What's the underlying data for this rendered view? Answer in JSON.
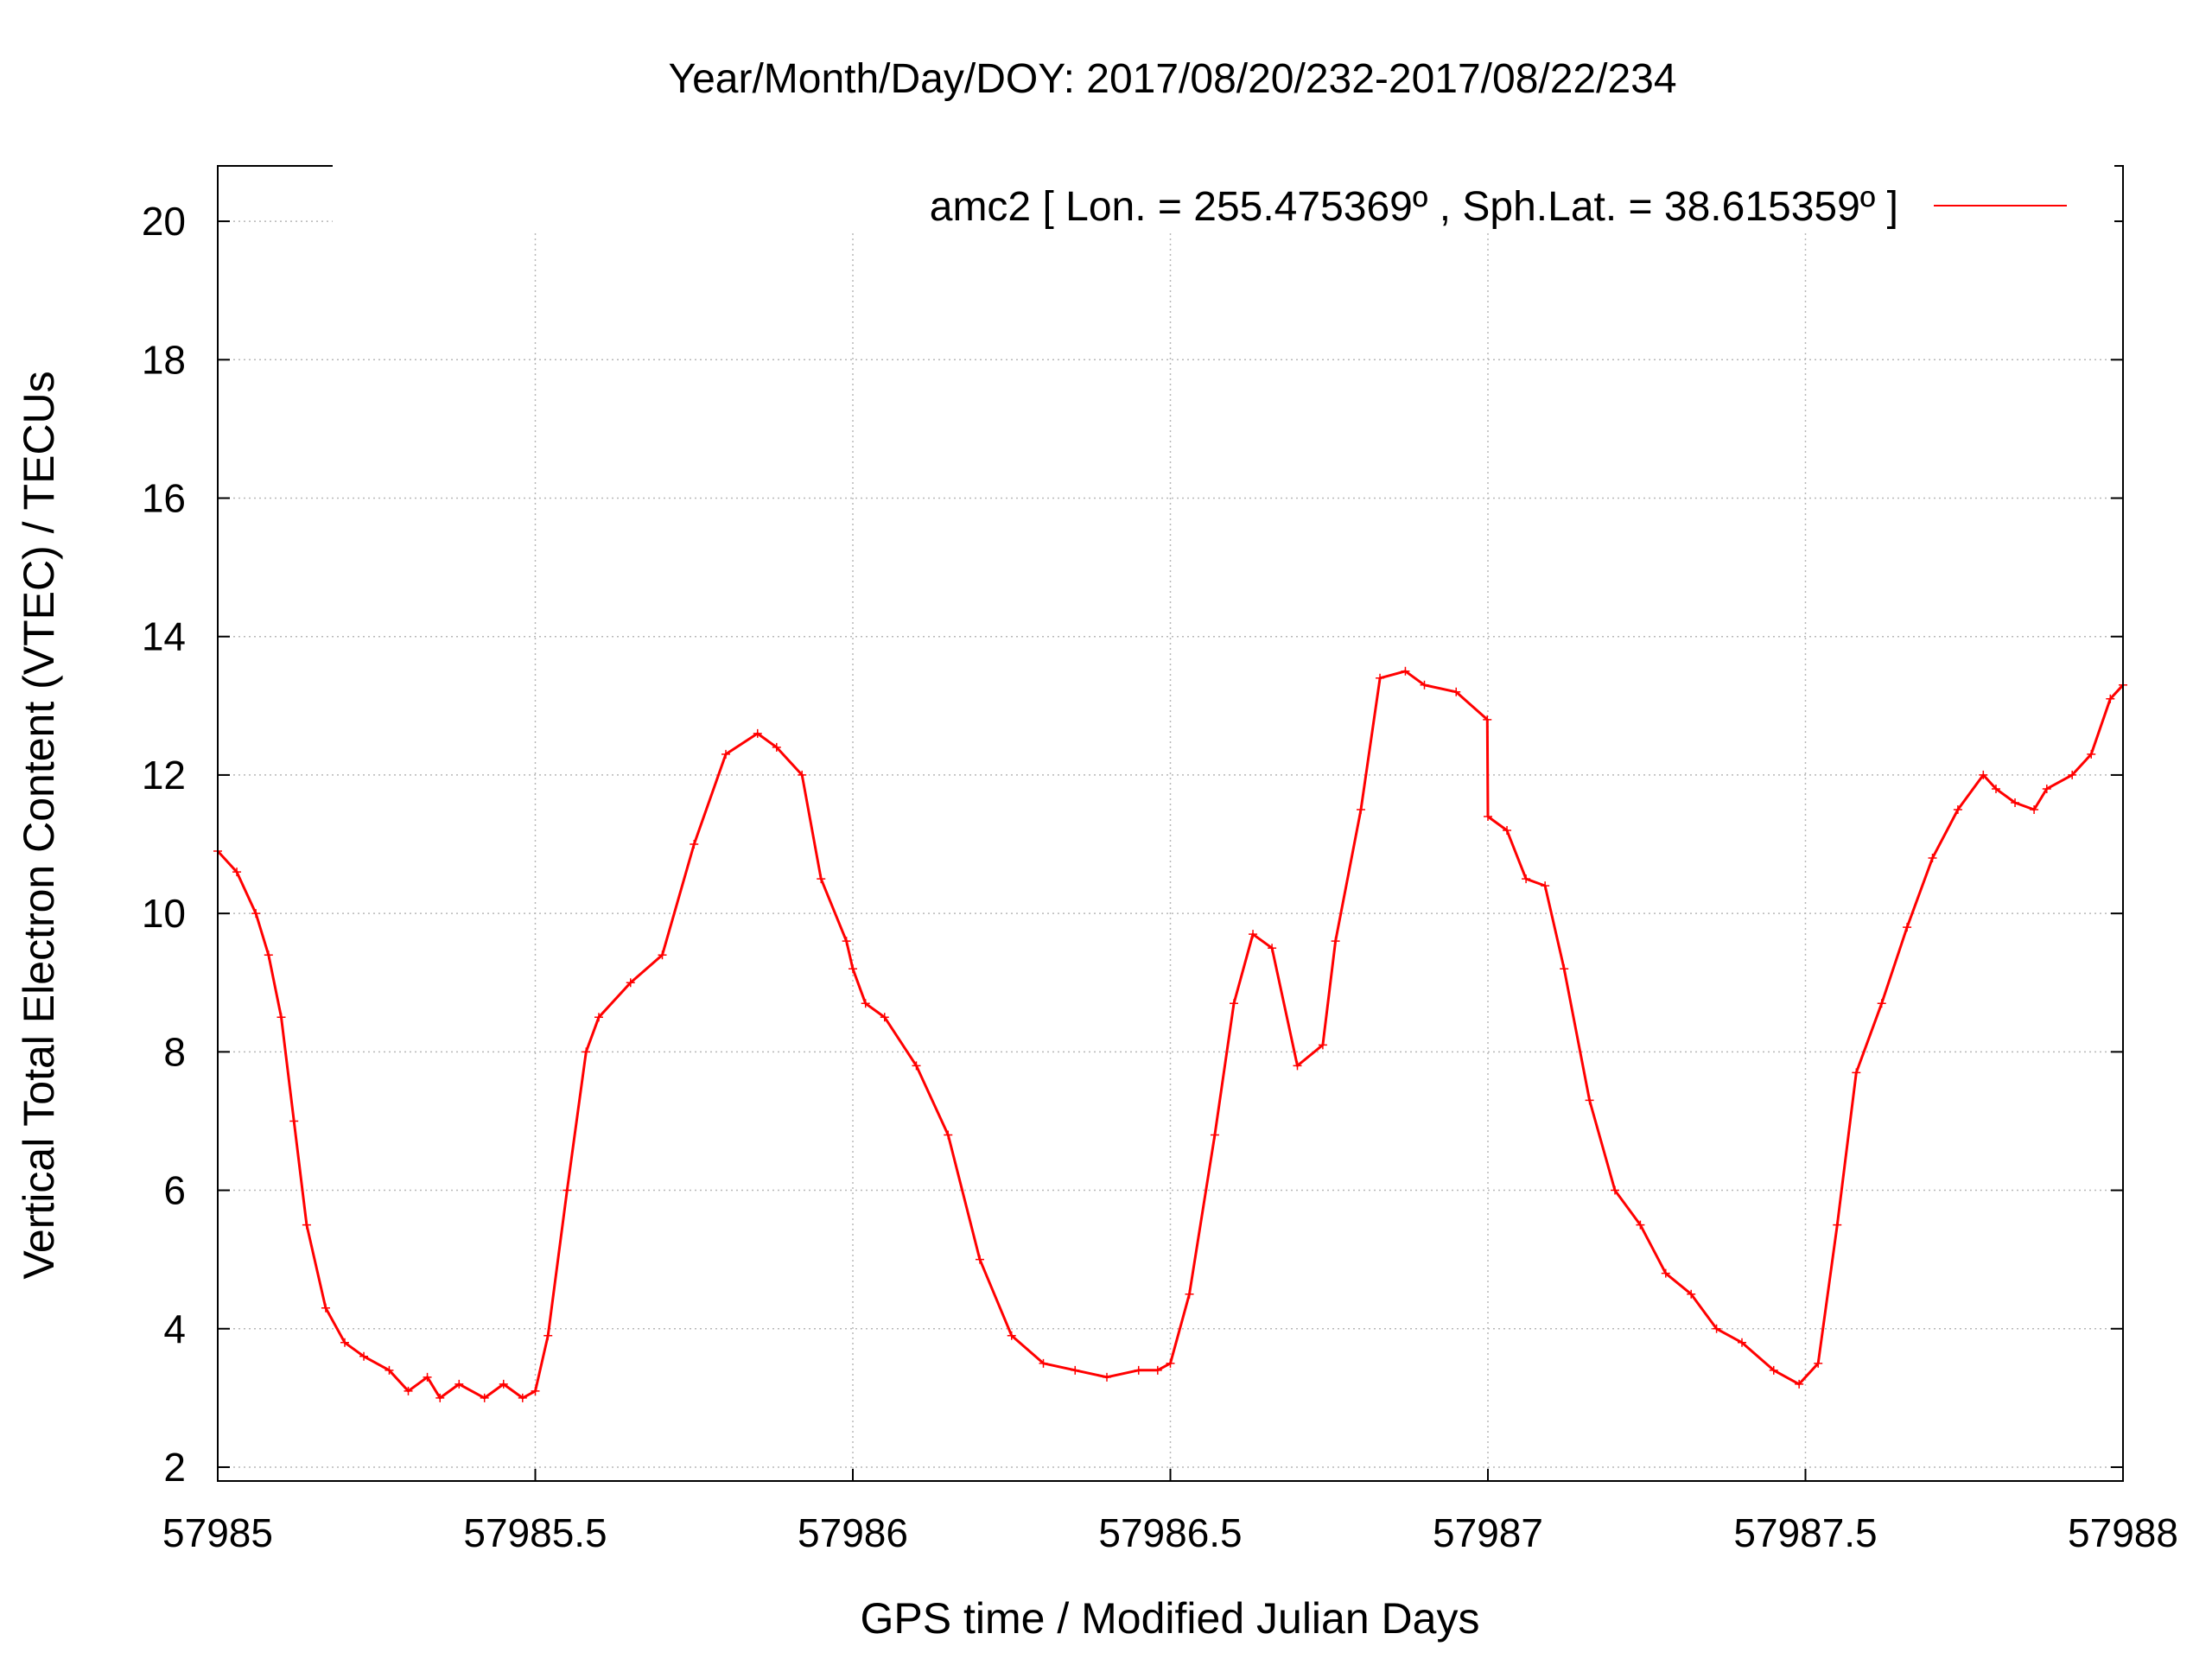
{
  "chart_data": {
    "type": "line",
    "title": "Year/Month/Day/DOY: 2017/08/20/232-2017/08/22/234",
    "xlabel": "GPS time / Modified Julian Days",
    "ylabel": "Vertical Total Electron Content (VTEC) / TECUs",
    "xlim": [
      57985,
      57988
    ],
    "ylim": [
      1.8,
      20.8
    ],
    "x_ticks": [
      57985,
      57985.5,
      57986,
      57986.5,
      57987,
      57987.5,
      57988
    ],
    "x_tick_labels": [
      "57985",
      "57985.5",
      "57986",
      "57986.5",
      "57987",
      "57987.5",
      "57988"
    ],
    "y_ticks": [
      2,
      4,
      6,
      8,
      10,
      12,
      14,
      16,
      18,
      20
    ],
    "y_tick_labels": [
      "2",
      "4",
      "6",
      "8",
      "10",
      "12",
      "14",
      "16",
      "18",
      "20"
    ],
    "grid": true,
    "legend_position": "top-right",
    "series": [
      {
        "name": "amc2 [ Lon. = 255.475369º , Sph.Lat. = 38.615359º ]",
        "color": "#ff0000",
        "x": [
          57985.0,
          57985.03,
          57985.06,
          57985.08,
          57985.1,
          57985.12,
          57985.14,
          57985.17,
          57985.2,
          57985.23,
          57985.27,
          57985.3,
          57985.33,
          57985.35,
          57985.38,
          57985.42,
          57985.45,
          57985.48,
          57985.5,
          57985.52,
          57985.55,
          57985.58,
          57985.6,
          57985.65,
          57985.7,
          57985.75,
          57985.8,
          57985.85,
          57985.88,
          57985.92,
          57985.95,
          57985.99,
          57986.0,
          57986.02,
          57986.05,
          57986.1,
          57986.15,
          57986.2,
          57986.25,
          57986.3,
          57986.35,
          57986.4,
          57986.45,
          57986.48,
          57986.5,
          57986.53,
          57986.57,
          57986.6,
          57986.63,
          57986.66,
          57986.7,
          57986.74,
          57986.76,
          57986.8,
          57986.83,
          57986.87,
          57986.9,
          57986.95,
          57986.999,
          57987.0,
          57987.03,
          57987.06,
          57987.09,
          57987.12,
          57987.16,
          57987.2,
          57987.24,
          57987.28,
          57987.32,
          57987.36,
          57987.4,
          57987.45,
          57987.49,
          57987.52,
          57987.55,
          57987.58,
          57987.62,
          57987.66,
          57987.7,
          57987.74,
          57987.78,
          57987.8,
          57987.83,
          57987.86,
          57987.88,
          57987.92,
          57987.95,
          57987.98,
          57988.0
        ],
        "y": [
          10.9,
          10.6,
          10.0,
          9.4,
          8.5,
          7.0,
          5.5,
          4.3,
          3.8,
          3.6,
          3.4,
          3.1,
          3.3,
          3.0,
          3.2,
          3.0,
          3.2,
          3.0,
          3.1,
          3.9,
          6.0,
          8.0,
          8.5,
          9.0,
          9.4,
          11.0,
          12.3,
          12.6,
          12.4,
          12.0,
          10.5,
          9.6,
          9.2,
          8.7,
          8.5,
          7.8,
          6.8,
          5.0,
          3.9,
          3.5,
          3.4,
          3.3,
          3.4,
          3.4,
          3.5,
          4.5,
          6.8,
          8.7,
          9.7,
          9.5,
          7.8,
          8.1,
          9.6,
          11.5,
          13.4,
          13.5,
          13.3,
          13.2,
          12.8,
          11.4,
          11.2,
          10.5,
          10.4,
          9.2,
          7.3,
          6.0,
          5.5,
          4.8,
          4.5,
          4.0,
          3.8,
          3.4,
          3.2,
          3.5,
          5.5,
          7.7,
          8.7,
          9.8,
          10.8,
          11.5,
          12.0,
          11.8,
          11.6,
          11.5,
          11.8,
          12.0,
          12.3,
          13.1,
          13.3
        ]
      }
    ]
  }
}
